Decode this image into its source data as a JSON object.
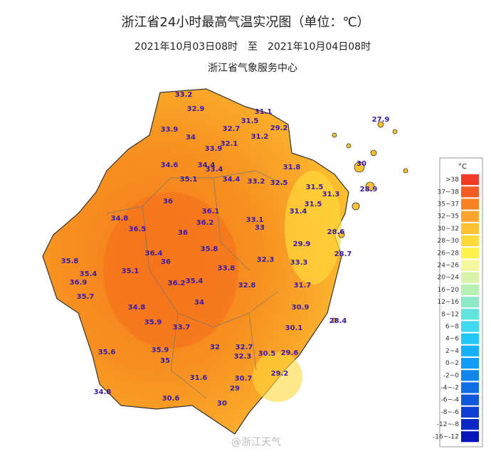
{
  "header": {
    "title": "浙江省24小时最高气温实况图（单位：℃）",
    "period": "2021年10月03日08时　至　2021年10月04日08时",
    "source": "浙江省气象服务中心"
  },
  "stations": [
    33.2,
    32.9,
    31.1,
    31.5,
    29.2,
    27.9,
    33.9,
    32.7,
    34,
    31.2,
    32.1,
    33.9,
    30,
    34.6,
    34.4,
    33.4,
    31.8,
    35.1,
    34.4,
    33.2,
    32.5,
    31.5,
    31.3,
    28.9,
    36,
    31.5,
    34.8,
    36.1,
    33.1,
    31.4,
    36.2,
    33,
    36.5,
    36,
    28.6,
    29.9,
    35.8,
    36.4,
    28.7,
    35.8,
    36,
    32.3,
    33.3,
    35.4,
    35.1,
    33.8,
    36.9,
    36.2,
    35.4,
    32.8,
    31.7,
    35.7,
    34,
    34.8,
    30.9,
    28.4,
    35.9,
    33.7,
    30.1,
    35.6,
    35.9,
    32,
    32.7,
    32.3,
    30.5,
    29.6,
    35,
    31.6,
    29.2,
    30.7,
    29,
    34.8,
    30.6,
    30
  ],
  "legend": {
    "unit": "°C",
    "items": [
      {
        "label": ">38",
        "color": "#ee3b24"
      },
      {
        "label": "37~38",
        "color": "#f25c22"
      },
      {
        "label": "35~37",
        "color": "#f7821f"
      },
      {
        "label": "32~35",
        "color": "#faa52b"
      },
      {
        "label": "30~32",
        "color": "#fdc230"
      },
      {
        "label": "28~30",
        "color": "#ffd83a"
      },
      {
        "label": "26~28",
        "color": "#fff04a"
      },
      {
        "label": "24~26",
        "color": "#f4f79c"
      },
      {
        "label": "20~24",
        "color": "#d8f3a8"
      },
      {
        "label": "16~20",
        "color": "#b4efb4"
      },
      {
        "label": "12~16",
        "color": "#8de9c8"
      },
      {
        "label": "8~12",
        "color": "#5fe3dc"
      },
      {
        "label": "6~8",
        "color": "#3fd8ee"
      },
      {
        "label": "4~6",
        "color": "#22c8f7"
      },
      {
        "label": "2~4",
        "color": "#16b2f7"
      },
      {
        "label": "0~2",
        "color": "#129cf3"
      },
      {
        "label": "-2~0",
        "color": "#1185ec"
      },
      {
        "label": "-4~-2",
        "color": "#106ee4"
      },
      {
        "label": "-6~-4",
        "color": "#0e57dc"
      },
      {
        "label": "-8~-6",
        "color": "#0c40d2"
      },
      {
        "label": "-12~-8",
        "color": "#0a2ac8"
      },
      {
        "label": "-16~-12",
        "color": "#0815bd"
      }
    ]
  },
  "watermark": "@浙江天气"
}
